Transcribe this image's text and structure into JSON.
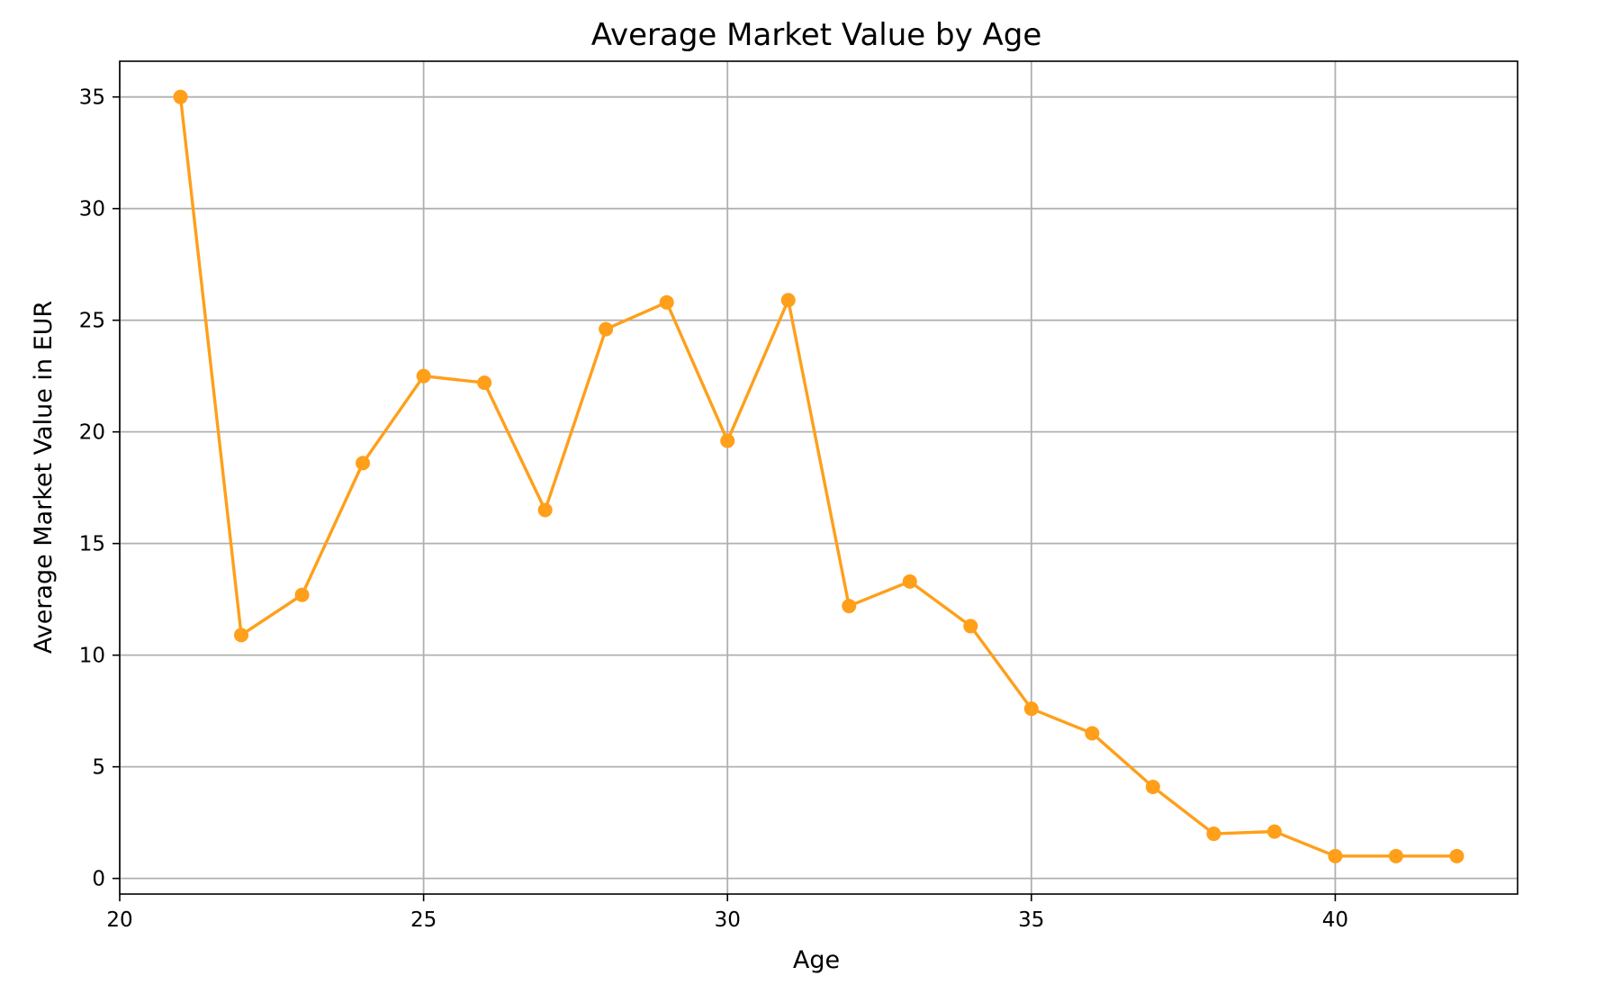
{
  "chart_data": {
    "type": "line",
    "title": "Average Market Value by Age",
    "xlabel": "Age",
    "ylabel": "Average Market Value in EUR",
    "xlim": [
      20,
      43
    ],
    "ylim": [
      -0.7,
      36.6
    ],
    "xticks": [
      20,
      25,
      30,
      35,
      40
    ],
    "yticks": [
      0,
      5,
      10,
      15,
      20,
      25,
      30,
      35
    ],
    "grid": true,
    "color": "#ff9f1a",
    "series": [
      {
        "x": [
          21,
          22,
          23,
          24,
          25,
          26,
          27,
          28,
          29,
          30,
          31,
          32,
          33,
          34,
          35,
          36,
          37,
          38,
          39,
          40,
          41,
          42
        ],
        "values": [
          35.0,
          10.9,
          12.7,
          18.6,
          22.5,
          22.2,
          16.5,
          24.6,
          25.8,
          19.6,
          25.9,
          12.2,
          13.3,
          11.3,
          7.6,
          6.5,
          4.1,
          2.0,
          2.1,
          1.0,
          1.0,
          1.0
        ]
      }
    ]
  }
}
